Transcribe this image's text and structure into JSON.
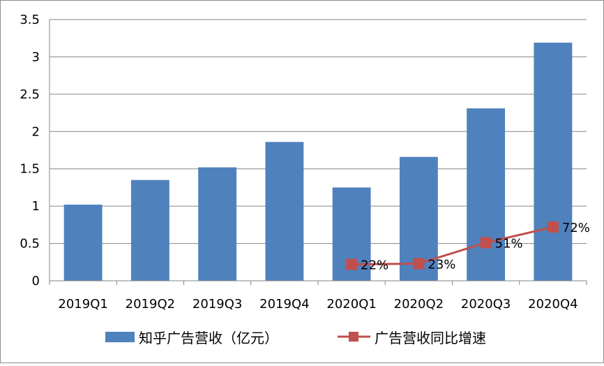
{
  "chart_data": {
    "type": "bar",
    "categories": [
      "2019Q1",
      "2019Q2",
      "2019Q3",
      "2019Q4",
      "2020Q1",
      "2020Q2",
      "2020Q3",
      "2020Q4"
    ],
    "series": [
      {
        "name": "知乎广告营收（亿元）",
        "type": "bar",
        "color": "#4f81bd",
        "values": [
          1.02,
          1.35,
          1.52,
          1.86,
          1.25,
          1.66,
          2.31,
          3.19
        ]
      },
      {
        "name": "广告营收同比增速",
        "type": "line",
        "color": "#c0504d",
        "values": [
          null,
          null,
          null,
          null,
          0.22,
          0.23,
          0.51,
          0.72
        ],
        "labels": [
          "",
          "",
          "",
          "",
          "22%",
          "23%",
          "51%",
          "72%"
        ]
      }
    ],
    "yticks": [
      "0",
      "0.5",
      "1",
      "1.5",
      "2",
      "2.5",
      "3",
      "3.5"
    ],
    "ylim": [
      0,
      3.5
    ],
    "grid": true,
    "legend_position": "bottom"
  }
}
